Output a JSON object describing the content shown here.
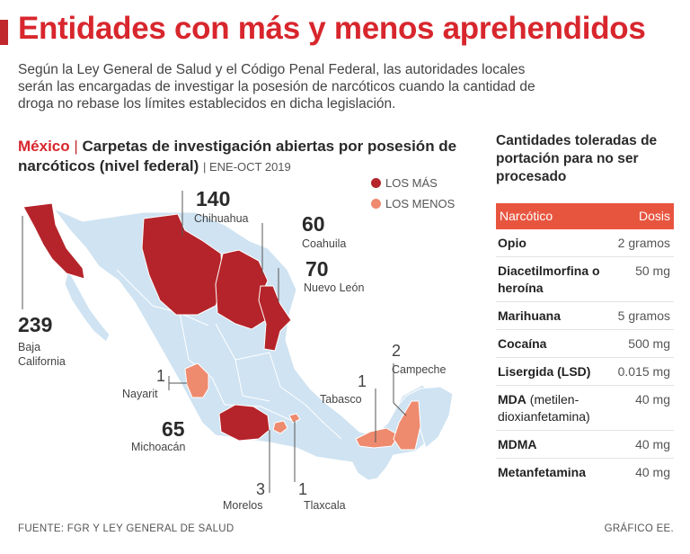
{
  "title": "Entidades con más y menos aprehendidos",
  "intro": "Según la Ley General de Salud y el Código Penal Federal, las autoridades locales serán las encargadas de investigar la posesión de narcóticos cuando la cantidad de droga no rebase los límites establecidos en dicha legislación.",
  "chart": {
    "country": "México",
    "title": "Carpetas de investigación abiertas por posesión de narcóticos (nivel federal)",
    "period": "ENE-OCT 2019"
  },
  "legend": {
    "mas": "LOS MÁS",
    "menos": "LOS MENOS"
  },
  "colors": {
    "mas": "#b5242a",
    "menos": "#ee8a6e",
    "base": "#cfe3f2",
    "accent": "#d8262d"
  },
  "states": {
    "baja_california": {
      "value": "239",
      "name_line1": "Baja",
      "name_line2": "California"
    },
    "chihuahua": {
      "value": "140",
      "name": "Chihuahua"
    },
    "coahuila": {
      "value": "60",
      "name": "Coahuila"
    },
    "nuevo_leon": {
      "value": "70",
      "name": "Nuevo León"
    },
    "michoacan": {
      "value": "65",
      "name": "Michoacán"
    },
    "nayarit": {
      "value": "1",
      "name": "Nayarit"
    },
    "morelos": {
      "value": "3",
      "name": "Morelos"
    },
    "tlaxcala": {
      "value": "1",
      "name": "Tlaxcala"
    },
    "tabasco": {
      "value": "1",
      "name": "Tabasco"
    },
    "campeche": {
      "value": "2",
      "name": "Campeche"
    }
  },
  "side": {
    "title": "Cantidades toleradas de portación para no ser procesado",
    "headers": {
      "narcotico": "Narcótico",
      "dosis": "Dosis"
    },
    "rows": [
      {
        "name": "Opio",
        "sub": "",
        "dose": "2 gramos"
      },
      {
        "name": "Diacetilmorfina o heroína",
        "sub": "",
        "dose": "50 mg"
      },
      {
        "name": "Marihuana",
        "sub": "",
        "dose": "5 gramos"
      },
      {
        "name": "Cocaína",
        "sub": "",
        "dose": "500 mg"
      },
      {
        "name": "Lisergida (LSD)",
        "sub": "",
        "dose": "0.015 mg"
      },
      {
        "name": "MDA",
        "sub": " (metilen-dioxianfetamina)",
        "dose": "40 mg"
      },
      {
        "name": "MDMA",
        "sub": "",
        "dose": "40 mg"
      },
      {
        "name": "Metanfetamina",
        "sub": "",
        "dose": "40 mg"
      }
    ]
  },
  "footer": {
    "source": "FUENTE: FGR Y LEY GENERAL DE SALUD",
    "credit": "GRÁFICO EE."
  }
}
